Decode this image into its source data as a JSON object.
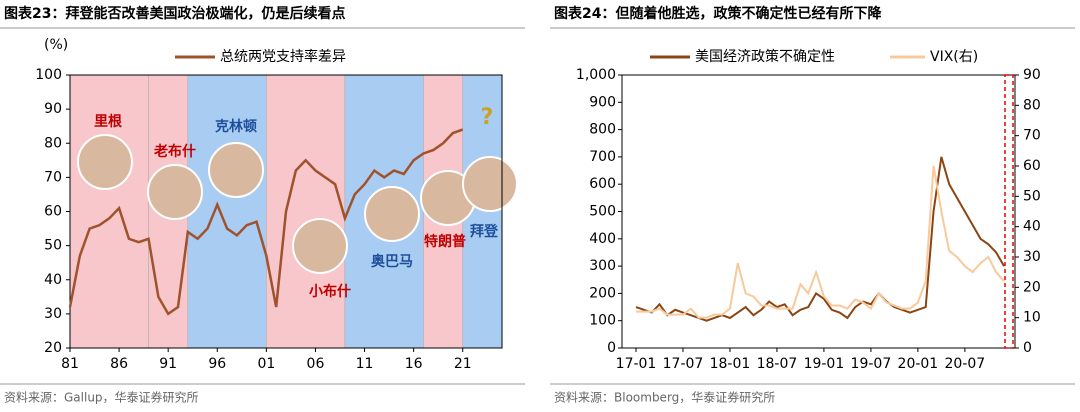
{
  "chart_data": [
    {
      "type": "line",
      "title": "图表23：拜登能否改善美国政治极端化，仍是后续看点",
      "source": "资料来源：Gallup，华泰证券研究所",
      "ylabel": "(%)",
      "x": [
        1981,
        1982,
        1983,
        1984,
        1985,
        1986,
        1987,
        1988,
        1989,
        1990,
        1991,
        1992,
        1993,
        1994,
        1995,
        1996,
        1997,
        1998,
        1999,
        2000,
        2001,
        2002,
        2003,
        2004,
        2005,
        2006,
        2007,
        2008,
        2009,
        2010,
        2011,
        2012,
        2013,
        2014,
        2015,
        2016,
        2017,
        2018,
        2019,
        2020,
        2021
      ],
      "series": [
        {
          "name": "总统两党支持率差异",
          "color": "#a0522d",
          "values": [
            32,
            47,
            55,
            56,
            58,
            61,
            52,
            51,
            52,
            35,
            30,
            32,
            54,
            52,
            55,
            62,
            55,
            53,
            56,
            57,
            47,
            32,
            60,
            72,
            75,
            72,
            70,
            68,
            58,
            65,
            68,
            72,
            70,
            72,
            71,
            75,
            77,
            78,
            80,
            83,
            84
          ]
        }
      ],
      "xlim": [
        1981,
        2025
      ],
      "ylim": [
        20,
        100
      ],
      "yticks": [
        20,
        30,
        40,
        50,
        60,
        70,
        80,
        90,
        100
      ],
      "xticks": [
        {
          "value": 1981,
          "label": "81"
        },
        {
          "value": 1986,
          "label": "86"
        },
        {
          "value": 1991,
          "label": "91"
        },
        {
          "value": 1996,
          "label": "96"
        },
        {
          "value": 2001,
          "label": "01"
        },
        {
          "value": 2006,
          "label": "06"
        },
        {
          "value": 2011,
          "label": "11"
        },
        {
          "value": 2016,
          "label": "16"
        },
        {
          "value": 2021,
          "label": "21"
        }
      ],
      "periods": [
        {
          "label": "里根",
          "start": 1981,
          "end": 1989,
          "color": "#f7c7cc",
          "text_color": "#c00000"
        },
        {
          "label": "老布什",
          "start": 1989,
          "end": 1993,
          "color": "#f7c7cc",
          "text_color": "#c00000"
        },
        {
          "label": "克林顿",
          "start": 1993,
          "end": 2001,
          "color": "#a9cdf2",
          "text_color": "#1f4e9a"
        },
        {
          "label": "小布什",
          "start": 2001,
          "end": 2009,
          "color": "#f7c7cc",
          "text_color": "#c00000"
        },
        {
          "label": "奥巴马",
          "start": 2009,
          "end": 2017,
          "color": "#a9cdf2",
          "text_color": "#1f4e9a"
        },
        {
          "label": "特朗普",
          "start": 2017,
          "end": 2021,
          "color": "#f7c7cc",
          "text_color": "#c00000"
        },
        {
          "label": "拜登",
          "start": 2021,
          "end": 2025,
          "color": "#a9cdf2",
          "text_color": "#1f4e9a"
        }
      ],
      "annotation": "?"
    },
    {
      "type": "line",
      "title": "图表24：但随着他胜选，政策不确定性已经有所下降",
      "source": "资料来源：Bloomberg，华泰证券研究所",
      "x": [
        "17-01",
        "17-02",
        "17-03",
        "17-04",
        "17-05",
        "17-06",
        "17-07",
        "17-08",
        "17-09",
        "17-10",
        "17-11",
        "17-12",
        "18-01",
        "18-02",
        "18-03",
        "18-04",
        "18-05",
        "18-06",
        "18-07",
        "18-08",
        "18-09",
        "18-10",
        "18-11",
        "18-12",
        "19-01",
        "19-02",
        "19-03",
        "19-04",
        "19-05",
        "19-06",
        "19-07",
        "19-08",
        "19-09",
        "19-10",
        "19-11",
        "19-12",
        "20-01",
        "20-02",
        "20-03",
        "20-04",
        "20-05",
        "20-06",
        "20-07",
        "20-08",
        "20-09",
        "20-10",
        "20-11",
        "20-12"
      ],
      "series": [
        {
          "name": "美国经济政策不确定性",
          "color": "#8b4513",
          "values": [
            150,
            140,
            130,
            160,
            120,
            140,
            130,
            120,
            110,
            100,
            110,
            120,
            110,
            130,
            150,
            120,
            140,
            170,
            150,
            160,
            120,
            140,
            150,
            200,
            180,
            140,
            130,
            110,
            150,
            170,
            160,
            200,
            170,
            150,
            140,
            130,
            140,
            150,
            500,
            700,
            600,
            550,
            500,
            450,
            400,
            380,
            350,
            300
          ]
        },
        {
          "name": "VIX(右)",
          "color": "#f8c99b",
          "axis": "y2",
          "values": [
            12,
            12,
            12,
            13,
            11,
            11,
            11,
            13,
            10,
            10,
            11,
            11,
            13,
            28,
            18,
            17,
            14,
            14,
            13,
            13,
            13,
            21,
            18,
            25,
            17,
            14,
            14,
            13,
            16,
            15,
            13,
            18,
            15,
            14,
            13,
            13,
            15,
            22,
            60,
            45,
            32,
            30,
            27,
            25,
            28,
            30,
            25,
            22
          ]
        }
      ],
      "xticks": [
        "17-01",
        "17-07",
        "18-01",
        "18-07",
        "19-01",
        "19-07",
        "20-01",
        "20-07"
      ],
      "ylim": [
        0,
        1000
      ],
      "yticks": [
        0,
        100,
        200,
        300,
        400,
        500,
        600,
        700,
        800,
        900,
        {
          "value": 1000,
          "label": "1,000"
        }
      ],
      "y2lim": [
        0,
        90
      ],
      "y2ticks": [
        0,
        10,
        20,
        30,
        40,
        50,
        60,
        70,
        80,
        90
      ]
    }
  ]
}
